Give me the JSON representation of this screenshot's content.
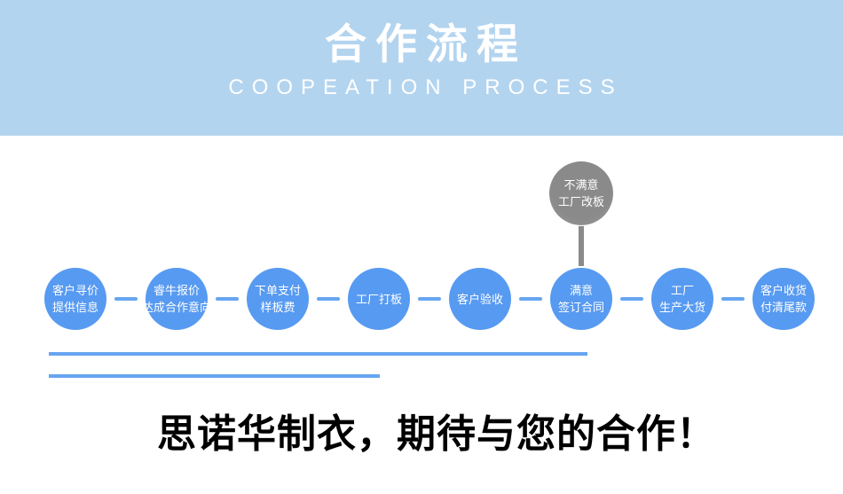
{
  "header": {
    "title": "合作流程",
    "subtitle": "COOPEATION PROCESS",
    "bg_color": "#b3d4ef",
    "text_color": "#ffffff"
  },
  "flow": {
    "node_color": "#579af1",
    "node_edge_color": "#7db2f5",
    "connector_color": "#66a5f1",
    "detour_color": "#8a8a8a",
    "detour_edge_color": "#9c9c9c",
    "nodes": [
      {
        "lines": [
          "客户寻价",
          "提供信息"
        ]
      },
      {
        "lines": [
          "睿牛报价",
          "达成合作意向"
        ]
      },
      {
        "lines": [
          "下单支付",
          "样板费"
        ]
      },
      {
        "lines": [
          "工厂打板"
        ]
      },
      {
        "lines": [
          "客户验收"
        ]
      },
      {
        "lines": [
          "满意",
          "签订合同"
        ],
        "detour": {
          "lines": [
            "不满意",
            "工厂改板"
          ]
        }
      },
      {
        "lines": [
          "工厂",
          "生产大货"
        ]
      },
      {
        "lines": [
          "客户收货",
          "付清尾款"
        ]
      }
    ]
  },
  "footer": {
    "slogan": "思诺华制衣，期待与您的合作！",
    "text_color": "#000000"
  }
}
